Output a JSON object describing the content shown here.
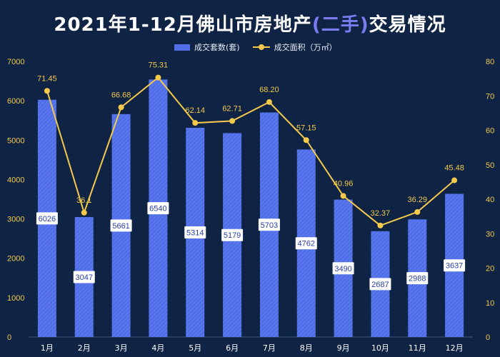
{
  "title": {
    "main": "2021年1-12月佛山市房地产",
    "highlight": "(二手)",
    "tail": "交易情况"
  },
  "legend": {
    "bar": "成交套数(套)",
    "line": "成交面积（万㎡）"
  },
  "colors": {
    "background": "#0f2444",
    "bar": "#4f6ee8",
    "line": "#f5c94c",
    "axis_text": "#f2c94c"
  },
  "chart_data": {
    "type": "bar",
    "categories": [
      "1月",
      "2月",
      "3月",
      "4月",
      "5月",
      "6月",
      "7月",
      "8月",
      "9月",
      "10月",
      "11月",
      "12月"
    ],
    "series": [
      {
        "name": "成交套数(套)",
        "type": "bar",
        "axis": "left",
        "values": [
          6026,
          3047,
          5661,
          6540,
          5314,
          5179,
          5703,
          4762,
          3490,
          2687,
          2988,
          3637
        ],
        "labels": [
          "6026",
          "3047",
          "5661",
          "6540",
          "5314",
          "5179",
          "5703",
          "4762",
          "3490",
          "2687",
          "2988",
          "3637"
        ]
      },
      {
        "name": "成交面积（万㎡）",
        "type": "line",
        "axis": "right",
        "values": [
          71.45,
          36.1,
          66.68,
          75.31,
          62.14,
          62.71,
          68.2,
          57.15,
          40.96,
          32.37,
          36.29,
          45.48
        ],
        "labels": [
          "71.45",
          "36.1",
          "66.68",
          "75.31",
          "62.14",
          "62.71",
          "68.20",
          "57.15",
          "40.96",
          "32.37",
          "36.29",
          "45.48"
        ]
      }
    ],
    "y_left": {
      "min": 0,
      "max": 7000,
      "ticks": [
        "0",
        "1000",
        "2000",
        "3000",
        "4000",
        "5000",
        "6000",
        "7000"
      ]
    },
    "y_right": {
      "min": 0,
      "max": 80,
      "ticks": [
        "0",
        "10",
        "20",
        "30",
        "40",
        "50",
        "60",
        "70",
        "80"
      ]
    },
    "grid": false,
    "legend_position": "top-center"
  }
}
